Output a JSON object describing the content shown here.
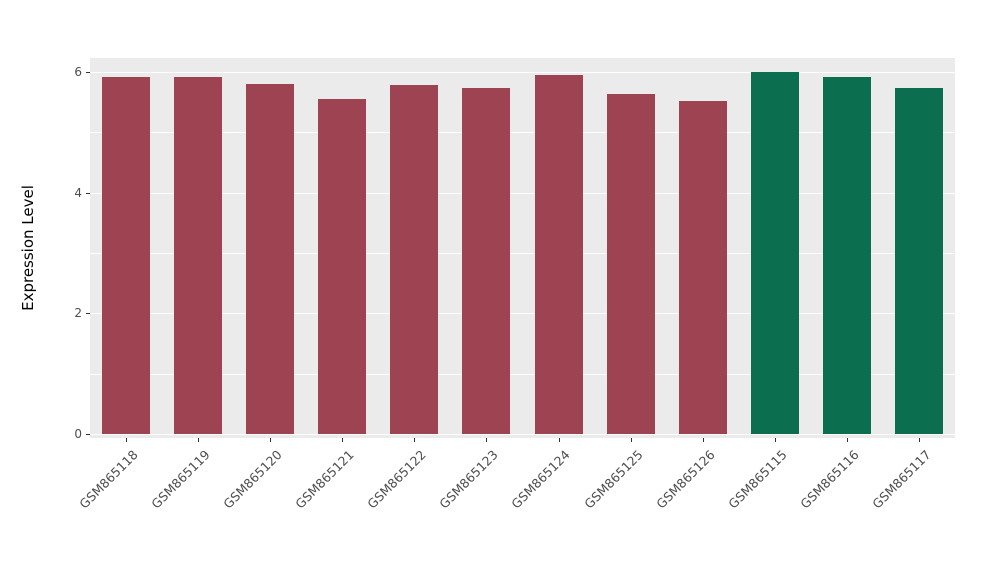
{
  "chart_data": {
    "type": "bar",
    "title": "",
    "xlabel": "",
    "ylabel": "Expression Level",
    "ylim": [
      0,
      6.3
    ],
    "yticks": [
      0,
      2,
      4,
      6
    ],
    "yminor": [
      1,
      3,
      5
    ],
    "categories": [
      "GSM865118",
      "GSM865119",
      "GSM865120",
      "GSM865121",
      "GSM865122",
      "GSM865123",
      "GSM865124",
      "GSM865125",
      "GSM865126",
      "GSM865115",
      "GSM865116",
      "GSM865117"
    ],
    "values": [
      5.92,
      5.92,
      5.8,
      5.56,
      5.78,
      5.73,
      5.95,
      5.64,
      5.52,
      6.0,
      5.92,
      5.74
    ],
    "groups": [
      "group1",
      "group1",
      "group1",
      "group1",
      "group1",
      "group1",
      "group1",
      "group1",
      "group1",
      "group2",
      "group2",
      "group2"
    ],
    "colors": {
      "group1": "#9E4352",
      "group2": "#0B6E4E"
    },
    "panel_background": "#EBEBEB",
    "gridline_color": "#FFFFFF",
    "axis_text_color": "#4D4D4D",
    "grid": "on",
    "legend": "none",
    "x_label_angle": 45
  }
}
